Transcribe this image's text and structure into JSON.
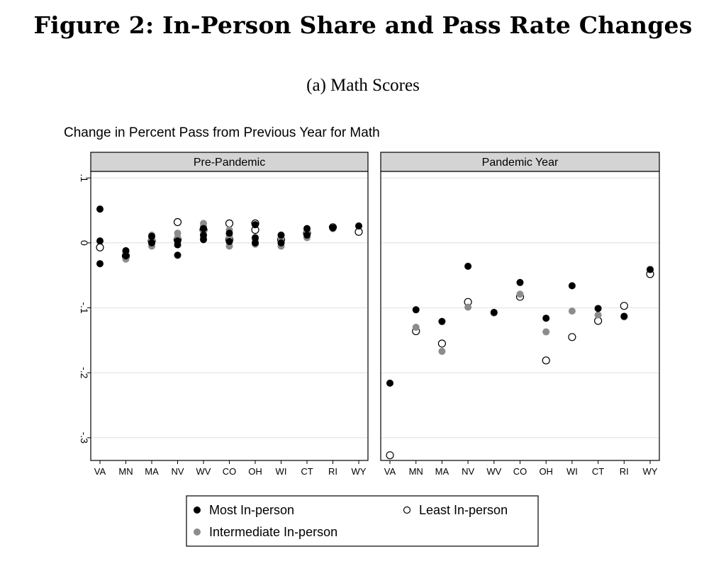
{
  "figure": {
    "title": "Figure 2: In-Person Share and Pass Rate Changes",
    "subtitle": "(a) Math Scores"
  },
  "colors": {
    "most": "#000000",
    "intermediate": "#8c8c8c",
    "least": "#ffffff",
    "strip_fill": "#d4d4d4",
    "grid": "#e4e4e4"
  },
  "chart_data": {
    "type": "scatter",
    "title": "Change in Percent Pass from Previous Year for Math",
    "categories": [
      "VA",
      "MN",
      "MA",
      "NV",
      "WV",
      "CO",
      "OH",
      "WI",
      "CT",
      "RI",
      "WY"
    ],
    "yticks": [
      0.1,
      0,
      -0.1,
      -0.2,
      -0.3
    ],
    "ytick_labels": [
      ".1",
      "0",
      "-.1",
      "-.2",
      "-.3"
    ],
    "ylim": [
      -0.335,
      0.11
    ],
    "grid": true,
    "legend_position": "bottom",
    "legend": [
      {
        "key": "most",
        "label": "Most In-person"
      },
      {
        "key": "least",
        "label": "Least In-person"
      },
      {
        "key": "intermediate",
        "label": "Intermediate In-person"
      }
    ],
    "panels": [
      {
        "label": "Pre-Pandemic",
        "series": [
          {
            "key": "most",
            "points": [
              [
                "VA",
                0.052
              ],
              [
                "VA",
                0.003
              ],
              [
                "VA",
                -0.032
              ],
              [
                "MN",
                -0.012
              ],
              [
                "MN",
                -0.02
              ],
              [
                "MA",
                0.01
              ],
              [
                "MA",
                0.0
              ],
              [
                "NV",
                0.003
              ],
              [
                "NV",
                -0.003
              ],
              [
                "NV",
                -0.019
              ],
              [
                "WV",
                0.022
              ],
              [
                "WV",
                0.012
              ],
              [
                "WV",
                0.005
              ],
              [
                "CO",
                0.015
              ],
              [
                "CO",
                0.002
              ],
              [
                "OH",
                0.028
              ],
              [
                "OH",
                0.008
              ],
              [
                "OH",
                0.0
              ],
              [
                "WI",
                0.012
              ],
              [
                "WI",
                0.0
              ],
              [
                "CT",
                0.022
              ],
              [
                "CT",
                0.012
              ],
              [
                "RI",
                0.023
              ],
              [
                "WY",
                0.026
              ]
            ]
          },
          {
            "key": "intermediate",
            "points": [
              [
                "MN",
                -0.015
              ],
              [
                "MN",
                -0.025
              ],
              [
                "MA",
                0.012
              ],
              [
                "MA",
                0.005
              ],
              [
                "MA",
                -0.005
              ],
              [
                "NV",
                0.015
              ],
              [
                "NV",
                0.008
              ],
              [
                "NV",
                0.002
              ],
              [
                "WV",
                0.03
              ],
              [
                "WV",
                0.025
              ],
              [
                "WV",
                0.018
              ],
              [
                "WV",
                0.008
              ],
              [
                "CO",
                0.02
              ],
              [
                "CO",
                0.01
              ],
              [
                "CO",
                -0.005
              ],
              [
                "OH",
                0.005
              ],
              [
                "OH",
                -0.002
              ],
              [
                "WI",
                0.008
              ],
              [
                "WI",
                -0.005
              ],
              [
                "CT",
                0.018
              ],
              [
                "CT",
                0.008
              ],
              [
                "RI",
                0.022
              ]
            ]
          },
          {
            "key": "least",
            "points": [
              [
                "VA",
                -0.007
              ],
              [
                "MN",
                -0.02
              ],
              [
                "MA",
                0.003
              ],
              [
                "NV",
                0.032
              ],
              [
                "NV",
                0.005
              ],
              [
                "WV",
                0.02
              ],
              [
                "CO",
                0.03
              ],
              [
                "CO",
                0.005
              ],
              [
                "OH",
                0.03
              ],
              [
                "OH",
                0.02
              ],
              [
                "WI",
                0.005
              ],
              [
                "CT",
                0.015
              ],
              [
                "RI",
                0.024
              ],
              [
                "WY",
                0.017
              ]
            ]
          }
        ]
      },
      {
        "label": "Pandemic Year",
        "series": [
          {
            "key": "most",
            "points": [
              [
                "VA",
                -0.216
              ],
              [
                "MN",
                -0.103
              ],
              [
                "MA",
                -0.121
              ],
              [
                "NV",
                -0.036
              ],
              [
                "WV",
                -0.107
              ],
              [
                "CO",
                -0.061
              ],
              [
                "OH",
                -0.116
              ],
              [
                "WI",
                -0.066
              ],
              [
                "CT",
                -0.101
              ],
              [
                "RI",
                -0.113
              ],
              [
                "WY",
                -0.041
              ]
            ]
          },
          {
            "key": "intermediate",
            "points": [
              [
                "MN",
                -0.13
              ],
              [
                "MA",
                -0.167
              ],
              [
                "NV",
                -0.099
              ],
              [
                "WV",
                -0.108
              ],
              [
                "CO",
                -0.079
              ],
              [
                "OH",
                -0.137
              ],
              [
                "WI",
                -0.105
              ],
              [
                "CT",
                -0.111
              ],
              [
                "RI",
                -0.114
              ]
            ]
          },
          {
            "key": "least",
            "points": [
              [
                "VA",
                -0.327
              ],
              [
                "MN",
                -0.136
              ],
              [
                "MA",
                -0.155
              ],
              [
                "NV",
                -0.091
              ],
              [
                "CO",
                -0.083
              ],
              [
                "OH",
                -0.181
              ],
              [
                "WI",
                -0.145
              ],
              [
                "CT",
                -0.12
              ],
              [
                "RI",
                -0.097
              ],
              [
                "WY",
                -0.048
              ]
            ]
          }
        ]
      }
    ]
  }
}
